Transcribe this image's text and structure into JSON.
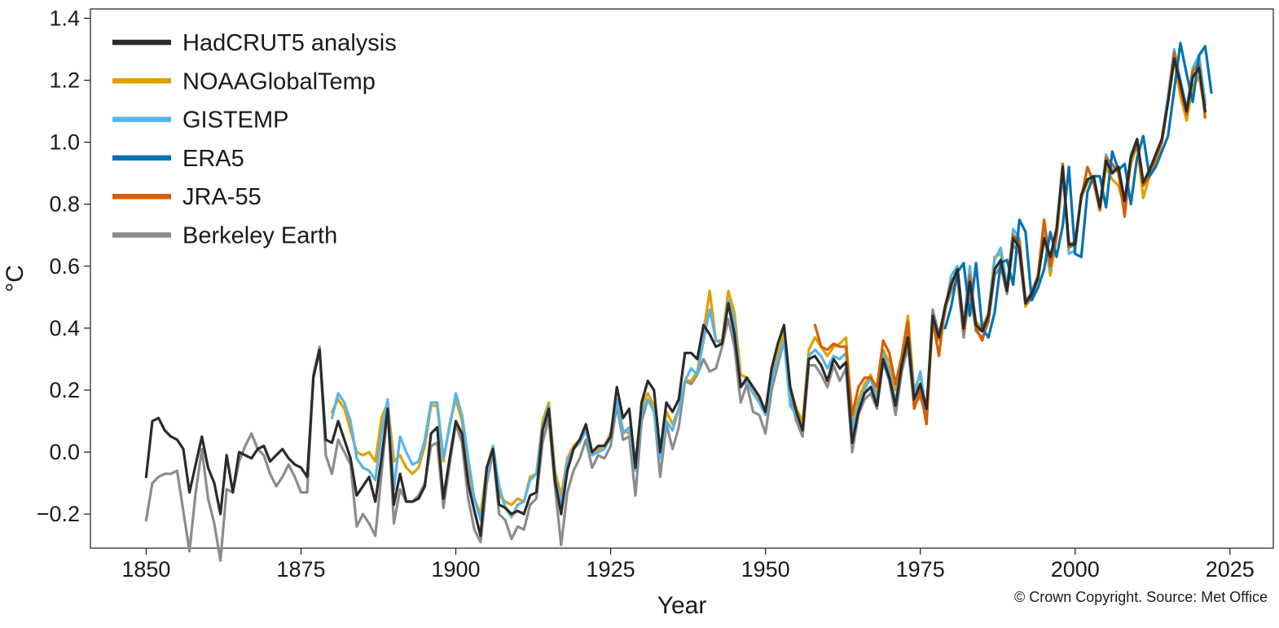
{
  "chart_data": {
    "type": "line",
    "xlabel": "Year",
    "ylabel": "°C",
    "xlim": [
      1841,
      2032
    ],
    "ylim": [
      -0.31,
      1.43
    ],
    "xticks": [
      1850,
      1875,
      1900,
      1925,
      1950,
      1975,
      2000,
      2025
    ],
    "yticks": [
      -0.2,
      0.0,
      0.2,
      0.4,
      0.6,
      0.8,
      1.0,
      1.2,
      1.4
    ],
    "ytick_labels": [
      "−0.2",
      "0.0",
      "0.2",
      "0.4",
      "0.6",
      "0.8",
      "1.0",
      "1.2",
      "1.4"
    ],
    "grid": false,
    "legend_position": "top-left",
    "credit": "© Crown Copyright. Source: Met Office",
    "series": [
      {
        "name": "HadCRUT5 analysis",
        "color": "#2b2b2b",
        "start_year": 1850,
        "values": [
          -0.08,
          0.1,
          0.11,
          0.07,
          0.05,
          0.04,
          0.01,
          -0.13,
          -0.04,
          0.05,
          -0.05,
          -0.1,
          -0.2,
          -0.01,
          -0.13,
          0.0,
          -0.01,
          -0.02,
          0.01,
          0.02,
          -0.03,
          -0.01,
          0.01,
          -0.02,
          -0.04,
          -0.05,
          -0.08,
          0.24,
          0.33,
          0.04,
          0.03,
          0.1,
          0.04,
          -0.02,
          -0.14,
          -0.11,
          -0.08,
          -0.16,
          -0.02,
          0.14,
          -0.17,
          -0.07,
          -0.16,
          -0.16,
          -0.15,
          -0.11,
          0.06,
          0.08,
          -0.15,
          -0.02,
          0.1,
          0.06,
          -0.1,
          -0.19,
          -0.27,
          -0.05,
          0.01,
          -0.17,
          -0.18,
          -0.2,
          -0.19,
          -0.2,
          -0.14,
          -0.13,
          0.07,
          0.14,
          -0.09,
          -0.2,
          -0.06,
          0.01,
          0.04,
          0.09,
          0.0,
          0.02,
          0.02,
          0.05,
          0.21,
          0.11,
          0.14,
          -0.05,
          0.16,
          0.23,
          0.2,
          0.0,
          0.16,
          0.13,
          0.17,
          0.32,
          0.32,
          0.3,
          0.41,
          0.38,
          0.34,
          0.35,
          0.48,
          0.38,
          0.21,
          0.24,
          0.21,
          0.18,
          0.13,
          0.27,
          0.35,
          0.41,
          0.21,
          0.13,
          0.07,
          0.3,
          0.31,
          0.28,
          0.23,
          0.3,
          0.27,
          0.29,
          0.03,
          0.13,
          0.19,
          0.21,
          0.15,
          0.3,
          0.24,
          0.15,
          0.28,
          0.37,
          0.17,
          0.22,
          0.14,
          0.44,
          0.37,
          0.47,
          0.54,
          0.59,
          0.4,
          0.55,
          0.41,
          0.39,
          0.44,
          0.59,
          0.62,
          0.52,
          0.69,
          0.66,
          0.48,
          0.51,
          0.56,
          0.69,
          0.63,
          0.72,
          0.92,
          0.67,
          0.67,
          0.83,
          0.88,
          0.89,
          0.79,
          0.94,
          0.9,
          0.92,
          0.81,
          0.95,
          1.01,
          0.87,
          0.91,
          0.96,
          1.01,
          1.13,
          1.27,
          1.19,
          1.1,
          1.21,
          1.24,
          1.1
        ]
      },
      {
        "name": "NOAAGlobalTemp",
        "color": "#e0a000",
        "start_year": 1880,
        "values": [
          0.13,
          0.17,
          0.14,
          0.07,
          0.0,
          -0.01,
          0.0,
          -0.03,
          0.11,
          0.16,
          -0.03,
          -0.01,
          -0.05,
          -0.07,
          -0.05,
          0.02,
          0.15,
          0.15,
          -0.03,
          0.09,
          0.17,
          0.1,
          -0.06,
          -0.15,
          -0.2,
          -0.05,
          0.02,
          -0.14,
          -0.16,
          -0.17,
          -0.15,
          -0.16,
          -0.08,
          -0.07,
          0.1,
          0.16,
          -0.06,
          -0.14,
          -0.02,
          0.02,
          0.04,
          0.08,
          0.0,
          0.01,
          0.02,
          0.06,
          0.17,
          0.07,
          0.06,
          -0.03,
          0.15,
          0.19,
          0.15,
          0.01,
          0.13,
          0.09,
          0.14,
          0.23,
          0.23,
          0.26,
          0.39,
          0.52,
          0.36,
          0.36,
          0.52,
          0.45,
          0.25,
          0.24,
          0.21,
          0.17,
          0.14,
          0.24,
          0.32,
          0.39,
          0.21,
          0.14,
          0.1,
          0.33,
          0.37,
          0.34,
          0.31,
          0.34,
          0.35,
          0.37,
          0.09,
          0.17,
          0.22,
          0.25,
          0.18,
          0.33,
          0.29,
          0.2,
          0.31,
          0.44,
          0.2,
          0.25,
          0.13,
          0.42,
          0.36,
          0.45,
          0.55,
          0.58,
          0.4,
          0.56,
          0.42,
          0.4,
          0.45,
          0.63,
          0.64,
          0.52,
          0.7,
          0.68,
          0.47,
          0.52,
          0.56,
          0.7,
          0.57,
          0.69,
          0.91,
          0.67,
          0.68,
          0.82,
          0.87,
          0.88,
          0.78,
          0.92,
          0.88,
          0.86,
          0.79,
          0.93,
          0.99,
          0.82,
          0.89,
          0.93,
          1.0,
          1.13,
          1.26,
          1.15,
          1.07,
          1.18,
          1.21,
          1.1
        ]
      },
      {
        "name": "GISTEMP",
        "color": "#56b4e9",
        "start_year": 1880,
        "values": [
          0.11,
          0.19,
          0.16,
          0.1,
          -0.02,
          -0.05,
          -0.06,
          -0.09,
          0.06,
          0.17,
          -0.12,
          0.05,
          0.0,
          -0.04,
          -0.03,
          0.04,
          0.16,
          0.16,
          -0.02,
          0.08,
          0.19,
          0.12,
          -0.02,
          -0.15,
          -0.22,
          -0.08,
          0.02,
          -0.11,
          -0.18,
          -0.21,
          -0.17,
          -0.16,
          -0.09,
          -0.07,
          0.08,
          0.15,
          -0.08,
          -0.17,
          -0.03,
          0.01,
          0.03,
          0.07,
          -0.01,
          0.0,
          0.01,
          0.05,
          0.17,
          0.06,
          0.08,
          -0.06,
          0.13,
          0.17,
          0.13,
          -0.02,
          0.1,
          0.07,
          0.14,
          0.23,
          0.27,
          0.25,
          0.36,
          0.46,
          0.36,
          0.35,
          0.49,
          0.42,
          0.21,
          0.23,
          0.19,
          0.16,
          0.12,
          0.23,
          0.3,
          0.36,
          0.15,
          0.12,
          0.07,
          0.31,
          0.33,
          0.31,
          0.27,
          0.31,
          0.3,
          0.32,
          0.07,
          0.15,
          0.2,
          0.24,
          0.16,
          0.32,
          0.26,
          0.16,
          0.29,
          0.41,
          0.18,
          0.26,
          0.12,
          0.43,
          0.38,
          0.46,
          0.57,
          0.6,
          0.41,
          0.6,
          0.4,
          0.39,
          0.44,
          0.62,
          0.66,
          0.53,
          0.72,
          0.69,
          0.48,
          0.52,
          0.57,
          0.71,
          0.59,
          0.71,
          0.91,
          0.64,
          0.65,
          0.83,
          0.88,
          0.89,
          0.79,
          0.96,
          0.91,
          0.92,
          0.81,
          0.96,
          1.01,
          0.87,
          0.91,
          0.96,
          1.01,
          1.15,
          1.3,
          1.2,
          1.11,
          1.24,
          1.28,
          1.13
        ]
      },
      {
        "name": "ERA5",
        "color": "#0072b2",
        "start_year": 1979,
        "values": [
          0.4,
          0.47,
          0.58,
          0.61,
          0.44,
          0.61,
          0.4,
          0.37,
          0.45,
          0.61,
          0.62,
          0.54,
          0.75,
          0.71,
          0.49,
          0.53,
          0.59,
          0.71,
          0.63,
          0.73,
          0.92,
          0.64,
          0.63,
          0.84,
          0.89,
          0.89,
          0.79,
          0.97,
          0.91,
          0.93,
          0.8,
          0.95,
          1.02,
          0.89,
          0.92,
          0.97,
          1.02,
          1.17,
          1.32,
          1.22,
          1.13,
          1.28,
          1.31,
          1.16
        ]
      },
      {
        "name": "JRA-55",
        "color": "#d55e00",
        "start_year": 1958,
        "values": [
          0.41,
          0.34,
          0.33,
          0.35,
          0.34,
          0.34,
          0.12,
          0.21,
          0.24,
          0.24,
          0.21,
          0.36,
          0.32,
          0.22,
          0.31,
          0.42,
          0.14,
          0.2,
          0.09,
          0.43,
          0.31,
          0.47,
          0.55,
          0.58,
          0.39,
          0.57,
          0.4,
          0.36,
          0.43,
          0.59,
          0.62,
          0.52,
          0.7,
          0.68,
          0.49,
          0.51,
          0.57,
          0.75,
          0.6,
          0.7,
          0.93,
          0.66,
          0.68,
          0.82,
          0.92,
          0.87,
          0.78,
          0.95,
          0.93,
          0.9,
          0.76,
          0.95,
          0.99,
          0.86,
          0.89,
          0.95,
          1.0,
          1.13,
          1.29,
          1.17,
          1.09,
          1.23,
          1.25,
          1.08
        ]
      },
      {
        "name": "Berkeley Earth",
        "color": "#8c8c8c",
        "start_year": 1850,
        "values": [
          -0.22,
          -0.1,
          -0.08,
          -0.07,
          -0.07,
          -0.06,
          -0.19,
          -0.32,
          -0.13,
          0.01,
          -0.15,
          -0.23,
          -0.35,
          -0.12,
          -0.13,
          -0.03,
          0.02,
          0.06,
          0.01,
          -0.01,
          -0.07,
          -0.11,
          -0.08,
          -0.04,
          -0.08,
          -0.13,
          -0.13,
          0.25,
          0.34,
          -0.01,
          -0.07,
          0.04,
          0.0,
          -0.04,
          -0.24,
          -0.2,
          -0.23,
          -0.27,
          -0.07,
          0.14,
          -0.23,
          -0.12,
          -0.16,
          -0.16,
          -0.14,
          -0.1,
          0.02,
          0.03,
          -0.18,
          -0.04,
          0.09,
          0.03,
          -0.15,
          -0.25,
          -0.29,
          -0.1,
          0.0,
          -0.2,
          -0.22,
          -0.28,
          -0.24,
          -0.25,
          -0.17,
          -0.15,
          0.03,
          0.11,
          -0.11,
          -0.3,
          -0.13,
          -0.06,
          -0.02,
          0.04,
          -0.05,
          -0.01,
          -0.02,
          0.02,
          0.15,
          0.04,
          0.05,
          -0.14,
          0.1,
          0.17,
          0.14,
          -0.08,
          0.09,
          0.01,
          0.08,
          0.23,
          0.22,
          0.25,
          0.3,
          0.26,
          0.27,
          0.34,
          0.43,
          0.34,
          0.16,
          0.22,
          0.13,
          0.12,
          0.06,
          0.2,
          0.28,
          0.36,
          0.18,
          0.1,
          0.05,
          0.28,
          0.28,
          0.25,
          0.21,
          0.28,
          0.23,
          0.27,
          0.0,
          0.12,
          0.17,
          0.19,
          0.14,
          0.29,
          0.23,
          0.12,
          0.26,
          0.34,
          0.15,
          0.18,
          0.11,
          0.46,
          0.38,
          0.46,
          0.52,
          0.56,
          0.37,
          0.52,
          0.39,
          0.37,
          0.42,
          0.57,
          0.6,
          0.51,
          0.67,
          0.64,
          0.47,
          0.5,
          0.56,
          0.69,
          0.6,
          0.69,
          0.9,
          0.66,
          0.67,
          0.82,
          0.87,
          0.88,
          0.79,
          0.94,
          0.9,
          0.92,
          0.81,
          0.94,
          1.0,
          0.87,
          0.91,
          0.96,
          1.01,
          1.14,
          1.28,
          1.19,
          1.11,
          1.23,
          1.27,
          1.12
        ]
      }
    ]
  }
}
